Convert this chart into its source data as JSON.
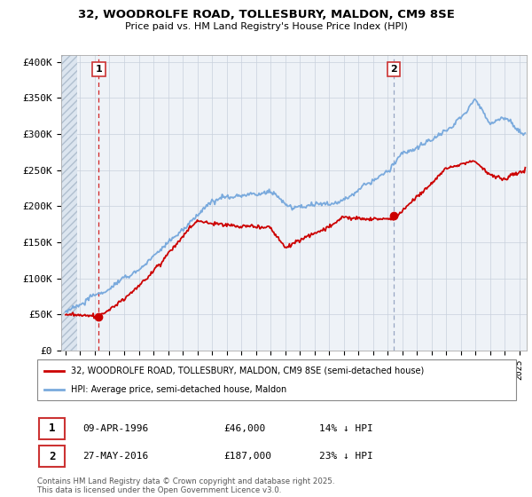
{
  "title1": "32, WOODROLFE ROAD, TOLLESBURY, MALDON, CM9 8SE",
  "title2": "Price paid vs. HM Land Registry's House Price Index (HPI)",
  "ylabel_ticks": [
    "£0",
    "£50K",
    "£100K",
    "£150K",
    "£200K",
    "£250K",
    "£300K",
    "£350K",
    "£400K"
  ],
  "ylabel_values": [
    0,
    50000,
    100000,
    150000,
    200000,
    250000,
    300000,
    350000,
    400000
  ],
  "ylim": [
    0,
    410000
  ],
  "xlim_start": 1993.7,
  "xlim_end": 2025.5,
  "marker1_x": 1996.27,
  "marker1_y": 46000,
  "marker1_label": "1",
  "marker2_x": 2016.41,
  "marker2_y": 187000,
  "marker2_label": "2",
  "sale1_date": "09-APR-1996",
  "sale1_price": "£46,000",
  "sale1_hpi": "14% ↓ HPI",
  "sale2_date": "27-MAY-2016",
  "sale2_price": "£187,000",
  "sale2_hpi": "23% ↓ HPI",
  "legend_line1": "32, WOODROLFE ROAD, TOLLESBURY, MALDON, CM9 8SE (semi-detached house)",
  "legend_line2": "HPI: Average price, semi-detached house, Maldon",
  "footer": "Contains HM Land Registry data © Crown copyright and database right 2025.\nThis data is licensed under the Open Government Licence v3.0.",
  "bg_color": "#eef2f7",
  "grid_color": "#c8d0dc",
  "red_line_color": "#cc0000",
  "blue_line_color": "#7aaadd",
  "marker1_vline_color": "#cc0000",
  "marker2_vline_color": "#8899bb"
}
